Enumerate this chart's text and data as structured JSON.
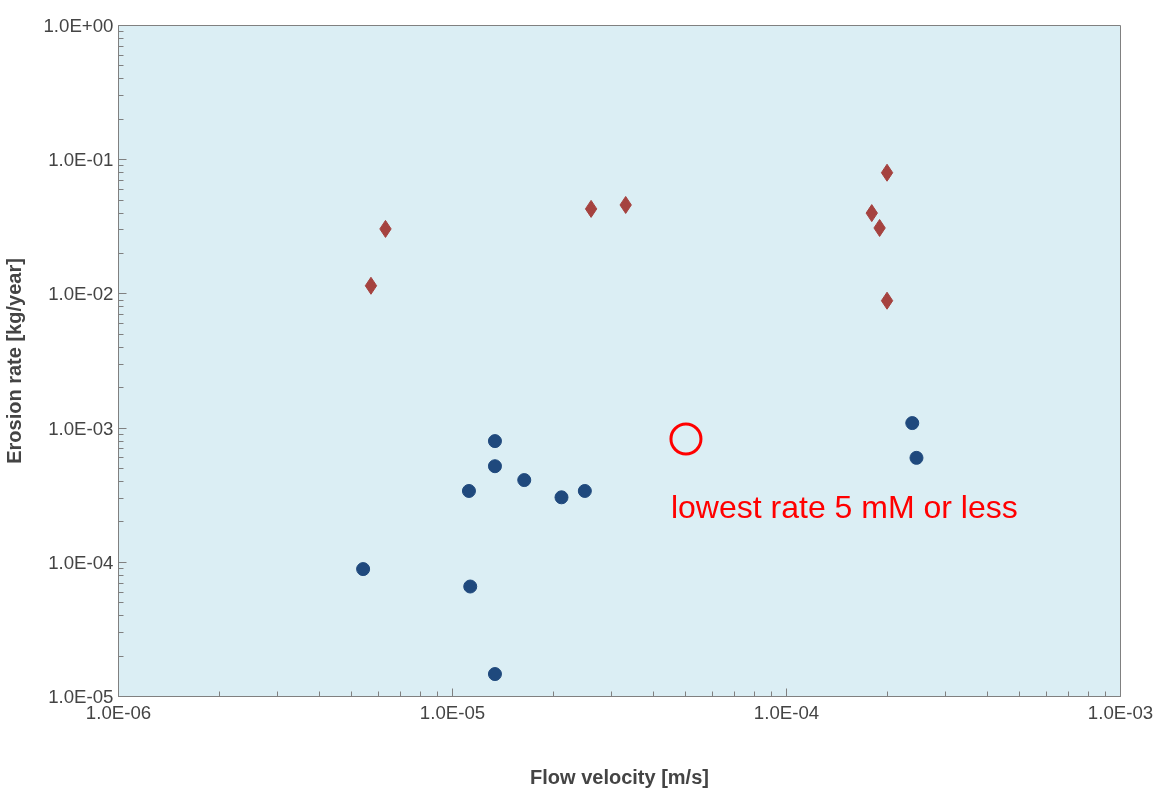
{
  "chart_data": {
    "type": "scatter",
    "xlabel": "Flow velocity [m/s]",
    "ylabel": "Erosion rate [kg/year]",
    "log": "xy",
    "grid": false,
    "xlim": [
      1e-06,
      0.001
    ],
    "ylim": [
      1e-05,
      1
    ],
    "xticks": [
      {
        "value": 1e-06,
        "label": "1.0E-06"
      },
      {
        "value": 1e-05,
        "label": "1.0E-05"
      },
      {
        "value": 0.0001,
        "label": "1.0E-04"
      },
      {
        "value": 0.001,
        "label": "1.0E-03"
      }
    ],
    "yticks": [
      {
        "value": 1e-05,
        "label": "1.0E-05"
      },
      {
        "value": 0.0001,
        "label": "1.0E-04"
      },
      {
        "value": 0.001,
        "label": "1.0E-03"
      },
      {
        "value": 0.01,
        "label": "1.0E-02"
      },
      {
        "value": 0.1,
        "label": "1.0E-01"
      },
      {
        "value": 1,
        "label": "1.0E+00"
      }
    ],
    "series": [
      {
        "color": "#a5423f",
        "marker": "diamond",
        "x": [
          5.7e-06,
          6.3e-06,
          2.6e-05,
          3.3e-05,
          0.00018,
          0.00019,
          0.0002,
          0.0002
        ],
        "values": [
          0.0115,
          0.0305,
          0.043,
          0.046,
          0.04,
          0.031,
          0.08,
          0.0089
        ]
      },
      {
        "color": "#1f497d",
        "marker": "circle",
        "x": [
          5.4e-06,
          1.12e-05,
          1.13e-05,
          1.34e-05,
          1.34e-05,
          1.34e-05,
          1.64e-05,
          2.12e-05,
          2.49e-05,
          0.000238,
          0.000245
        ],
        "values": [
          8.9e-05,
          0.00034,
          6.6e-05,
          0.0008,
          0.00052,
          1.47e-05,
          0.00041,
          0.000305,
          0.00034,
          0.00109,
          0.0006
        ]
      }
    ],
    "annotations": [
      {
        "text": "lowest rate 5 mM or less",
        "x": 5e-05,
        "y": 0.00083
      }
    ]
  }
}
